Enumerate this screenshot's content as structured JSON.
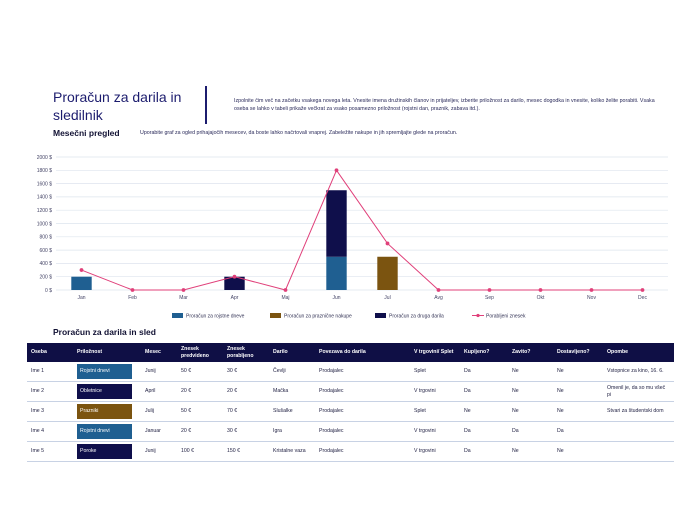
{
  "header": {
    "title": "Proračun za darila in sledilnik",
    "intro": "Izpolnite čim več na začetku vsakega novega leta. Vnesite imena družinskih članov in prijateljev, izberite priložnost za darilo, mesec dogodka in vnesite, koliko želite porabiti. Vsaka oseba se lahko v tabeli prikaže večkrat za vsako posamezno priložnost (rojstni dan, praznik, zabava itd.)."
  },
  "monthly": {
    "heading": "Mesečni pregled",
    "description": "Uporabite graf za ogled prihajajočih mesecev, da boste lahko načrtovali vnaprej. Zabeležite nakupe in jih spremljajte glede na proračun."
  },
  "colors": {
    "navy": "#0f0f45",
    "birthday": "#1f5f91",
    "holiday": "#7b5410",
    "other": "#0f0f4b",
    "spent": "#e0407a",
    "grid": "#dde4ee"
  },
  "chart_data": {
    "type": "bar",
    "stacked": true,
    "categories": [
      "Jan",
      "Feb",
      "Mar",
      "Apr",
      "Maj",
      "Jun",
      "Jul",
      "Avg",
      "Sep",
      "Okt",
      "Nov",
      "Dec"
    ],
    "ylim": [
      0,
      2000
    ],
    "yticks": [
      "0 $",
      "200 $",
      "400 $",
      "600 $",
      "800 $",
      "1000 $",
      "1200 $",
      "1400 $",
      "1600 $",
      "1800 $",
      "2000 $"
    ],
    "series": [
      {
        "name": "Proračun za rojstne dneve",
        "type": "bar",
        "values": [
          200,
          0,
          0,
          0,
          0,
          500,
          0,
          0,
          0,
          0,
          0,
          0
        ]
      },
      {
        "name": "Proračun za praznične nakupe",
        "type": "bar",
        "values": [
          0,
          0,
          0,
          0,
          0,
          0,
          500,
          0,
          0,
          0,
          0,
          0
        ]
      },
      {
        "name": "Proračun za druga darila",
        "type": "bar",
        "values": [
          0,
          0,
          0,
          200,
          0,
          1000,
          0,
          0,
          0,
          0,
          0,
          0
        ]
      },
      {
        "name": "Porabljeni znesek",
        "type": "line",
        "values": [
          300,
          0,
          0,
          200,
          0,
          1800,
          700,
          0,
          0,
          0,
          0,
          0
        ]
      }
    ]
  },
  "tracker": {
    "heading": "Proračun za darila in sled",
    "columns": [
      "Oseba",
      "Priložnost",
      "Mesec",
      "Znesek predvideno",
      "Znesek porabljeno",
      "Darilo",
      "Povezava do darila",
      "V trgovini/ Splet",
      "Kupljeno?",
      "Zavito?",
      "Dostavljeno?",
      "Opombe"
    ],
    "rows": [
      {
        "oseba": "Ime 1",
        "priloznost": "Rojstni dnevi",
        "occ_color": "#1f5f91",
        "mesec": "Junij",
        "predvideno": "50 €",
        "porabljeno": "30 €",
        "darilo": "Čevlji",
        "povezava": "Prodajalec",
        "trgovina": "Splet",
        "kupljeno": "Da",
        "zavito": "Ne",
        "dostavljeno": "Ne",
        "opombe": "Vstopnice za kino, 16. 6."
      },
      {
        "oseba": "Ime 2",
        "priloznost": "Obletnice",
        "occ_color": "#0f0f4b",
        "mesec": "April",
        "predvideno": "20 €",
        "porabljeno": "20 €",
        "darilo": "Mačka",
        "povezava": "Prodajalec",
        "trgovina": "V trgovini",
        "kupljeno": "Da",
        "zavito": "Ne",
        "dostavljeno": "Ne",
        "opombe": "Omenil je, da so mu všeč pi"
      },
      {
        "oseba": "Ime 3",
        "priloznost": "Prazniki",
        "occ_color": "#7b5410",
        "mesec": "Julij",
        "predvideno": "50 €",
        "porabljeno": "70 €",
        "darilo": "Slušalke",
        "povezava": "Prodajalec",
        "trgovina": "Splet",
        "kupljeno": "Ne",
        "zavito": "Ne",
        "dostavljeno": "Ne",
        "opombe": "Stvari za študentski dom"
      },
      {
        "oseba": "Ime 4",
        "priloznost": "Rojstni dnevi",
        "occ_color": "#1f5f91",
        "mesec": "Januar",
        "predvideno": "20 €",
        "porabljeno": "30 €",
        "darilo": "Igra",
        "povezava": "Prodajalec",
        "trgovina": "V trgovini",
        "kupljeno": "Da",
        "zavito": "Da",
        "dostavljeno": "Da",
        "opombe": ""
      },
      {
        "oseba": "Ime 5",
        "priloznost": "Poroke",
        "occ_color": "#0f0f4b",
        "mesec": "Junij",
        "predvideno": "100 €",
        "porabljeno": "150 €",
        "darilo": "Kristalne vaza",
        "povezava": "Prodajalec",
        "trgovina": "V trgovini",
        "kupljeno": "Da",
        "zavito": "Ne",
        "dostavljeno": "Ne",
        "opombe": ""
      }
    ]
  }
}
